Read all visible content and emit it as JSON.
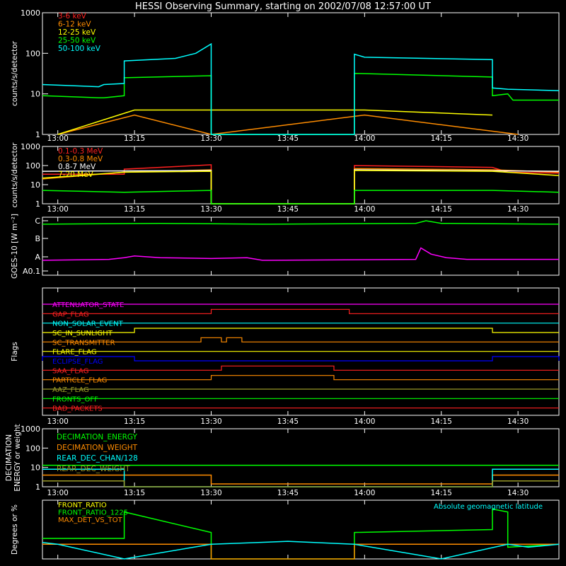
{
  "title": "HESSI Observing Summary, starting on 2002/07/08 12:57:00 UT",
  "time_ticks": [
    "13:00",
    "13:15",
    "13:30",
    "13:45",
    "14:00",
    "14:15",
    "14:30"
  ],
  "colors": {
    "bg": "#000000",
    "axis": "#ffffff",
    "red": "#ff2020",
    "orange": "#ff8c00",
    "yellow": "#ffff00",
    "green": "#00ff00",
    "cyan": "#00ffff",
    "magenta": "#ff00ff",
    "blue": "#0000ff",
    "olive": "#9a9a28"
  },
  "chart_data": [
    {
      "id": "lowE",
      "type": "line",
      "ylabel": "counts/s/detector",
      "yscale": "log",
      "ylim": [
        1,
        1000
      ],
      "yticks": [
        "1",
        "10",
        "100",
        "1000"
      ],
      "series": [
        {
          "name": "3-6 keV",
          "color": "#ff2020",
          "x": [],
          "y": []
        },
        {
          "name": "6-12 keV",
          "color": "#ff8c00",
          "x": [
            "13:00",
            "13:15",
            "13:30",
            "14:00",
            "14:30"
          ],
          "y": [
            1,
            3,
            1,
            3,
            1
          ]
        },
        {
          "name": "12-25 keV",
          "color": "#ffff00",
          "x": [
            "13:00",
            "13:15",
            "13:29",
            "14:00",
            "14:25"
          ],
          "y": [
            1,
            4,
            4,
            4,
            3
          ]
        },
        {
          "name": "25-50 keV",
          "color": "#00ff00",
          "x": [
            "12:57",
            "13:08",
            "13:09",
            "13:13",
            "13:13",
            "13:30",
            "13:30",
            "13:58",
            "13:58",
            "14:25",
            "14:25",
            "14:28",
            "14:29",
            "14:38"
          ],
          "y": [
            9,
            8,
            8,
            9,
            25,
            28,
            1,
            1,
            32,
            26,
            9,
            10,
            7,
            7
          ]
        },
        {
          "name": "50-100 keV",
          "color": "#00ffff",
          "x": [
            "12:57",
            "13:08",
            "13:09",
            "13:13",
            "13:13",
            "13:23",
            "13:27",
            "13:30",
            "13:30",
            "13:58",
            "13:58",
            "14:00",
            "14:25",
            "14:25",
            "14:28",
            "14:38"
          ],
          "y": [
            17,
            15,
            17,
            18,
            65,
            75,
            100,
            170,
            1,
            1,
            95,
            80,
            70,
            14,
            13,
            12
          ]
        }
      ]
    },
    {
      "id": "highE",
      "type": "line",
      "ylabel": "counts/s/detector",
      "yscale": "log",
      "ylim": [
        1,
        1000
      ],
      "yticks": [
        "1",
        "10",
        "100",
        "1000"
      ],
      "series": [
        {
          "name": "0.1-0.3 MeV",
          "color": "#ff2020",
          "x": [
            "12:57",
            "13:13",
            "13:13",
            "13:30",
            "13:30",
            "13:58",
            "13:58",
            "14:25",
            "14:28",
            "14:38"
          ],
          "y": [
            35,
            35,
            65,
            110,
            1,
            1,
            100,
            80,
            45,
            40
          ]
        },
        {
          "name": "0.3-0.8 MeV",
          "color": "#ff8c00",
          "x": [
            "12:57",
            "13:13",
            "13:30",
            "13:30",
            "13:58",
            "13:58",
            "14:25",
            "14:38"
          ],
          "y": [
            20,
            45,
            60,
            1,
            1,
            70,
            60,
            45
          ]
        },
        {
          "name": "0.8-7 MeV",
          "color": "#ffffff",
          "x": [
            "12:57",
            "13:30",
            "13:30",
            "13:58",
            "13:58",
            "14:38"
          ],
          "y": [
            50,
            55,
            1,
            1,
            60,
            50
          ]
        },
        {
          "name": "7-20 MeV",
          "color": "#ffff00",
          "x": [
            "12:57",
            "13:13",
            "13:30",
            "13:30",
            "13:58",
            "13:58",
            "14:25",
            "14:38"
          ],
          "y": [
            22,
            45,
            50,
            1,
            1,
            55,
            50,
            30
          ]
        },
        {
          "name": "",
          "color": "#00ff00",
          "x": [
            "12:57",
            "13:13",
            "13:30",
            "13:30",
            "13:58",
            "13:58",
            "14:25",
            "14:38"
          ],
          "y": [
            5,
            4,
            5,
            1,
            1,
            5,
            5,
            4
          ]
        }
      ]
    },
    {
      "id": "goes",
      "type": "line",
      "ylabel": "GOES-10 [W m⁻²]",
      "yticks": [
        "A0.1",
        "A",
        "B",
        "C"
      ],
      "series": [
        {
          "name": "GOES high",
          "color": "#00ff00",
          "x": [
            "12:57",
            "13:20",
            "13:40",
            "14:10",
            "14:12",
            "14:15",
            "14:38"
          ],
          "y": [
            2.9,
            2.95,
            2.9,
            2.95,
            3.1,
            2.95,
            2.9
          ]
        },
        {
          "name": "GOES low",
          "color": "#ff00ff",
          "x": [
            "12:57",
            "13:10",
            "13:13",
            "13:15",
            "13:20",
            "13:30",
            "13:37",
            "13:40",
            "14:10",
            "14:11",
            "14:13",
            "14:16",
            "14:20",
            "14:38"
          ],
          "y": [
            0.85,
            0.9,
            1.0,
            1.1,
            1.0,
            0.95,
            1.0,
            0.85,
            0.9,
            1.55,
            1.2,
            1.0,
            0.9,
            0.9
          ]
        }
      ]
    },
    {
      "id": "flags",
      "type": "line",
      "ylabel": "Flags",
      "flags": [
        {
          "name": "ATTENUATOR_STATE",
          "color": "#ff00ff",
          "segments": []
        },
        {
          "name": "GAP_FLAG",
          "color": "#ff2020",
          "segments": [
            [
              "13:30",
              "13:57"
            ]
          ]
        },
        {
          "name": "NON_SOLAR_EVENT",
          "color": "#00ffff",
          "segments": []
        },
        {
          "name": "SC_IN_SUNLIGHT",
          "color": "#ffff00",
          "segments": [
            [
              "13:15",
              "14:25"
            ]
          ]
        },
        {
          "name": "SC_TRANSMITTER",
          "color": "#ff8c00",
          "segments": [
            [
              "13:28",
              "13:32"
            ],
            [
              "13:33",
              "13:36"
            ]
          ]
        },
        {
          "name": "FLARE_FLAG",
          "color": "#ffff00",
          "segments": []
        },
        {
          "name": "ECLIPSE_FLAG",
          "color": "#0000ff",
          "segments": [
            [
              "12:57",
              "13:15"
            ],
            [
              "14:25",
              "14:38"
            ]
          ]
        },
        {
          "name": "SAA_FLAG",
          "color": "#ff2020",
          "segments": [
            [
              "13:32",
              "13:54"
            ]
          ]
        },
        {
          "name": "PARTICLE_FLAG",
          "color": "#ff8c00",
          "segments": [
            [
              "13:30",
              "13:54"
            ]
          ]
        },
        {
          "name": "AAZ_FLAG",
          "color": "#9a9a28",
          "segments": []
        },
        {
          "name": "FRONTS_OFF",
          "color": "#00ff00",
          "segments": []
        },
        {
          "name": "BAD_PACKETS",
          "color": "#ff2020",
          "segments": []
        }
      ]
    },
    {
      "id": "decim",
      "type": "line",
      "ylabel": "DECIMATION ENERGY or weight",
      "yscale": "log",
      "ylim": [
        1,
        1000
      ],
      "yticks": [
        "1",
        "10",
        "100",
        "1000"
      ],
      "series": [
        {
          "name": "DECIMATION_ENERGY",
          "color": "#00ff00",
          "x": [
            "12:57",
            "14:38"
          ],
          "y": [
            13,
            13
          ]
        },
        {
          "name": "DECIMATION_WEIGHT",
          "color": "#ff8c00",
          "x": [
            "12:57",
            "13:30",
            "13:30",
            "14:25",
            "14:25",
            "14:38"
          ],
          "y": [
            4,
            4,
            1.4,
            1.4,
            4,
            4
          ]
        },
        {
          "name": "REAR_DEC_CHAN/128",
          "color": "#00ffff",
          "x": [
            "12:57",
            "13:13",
            "13:13",
            "14:25",
            "14:25",
            "14:38"
          ],
          "y": [
            8,
            8,
            1,
            1,
            8,
            8
          ]
        },
        {
          "name": "REAR_DEC_WEIGHT",
          "color": "#9a9a28",
          "x": [
            "12:57",
            "13:13",
            "13:13",
            "14:25",
            "14:25",
            "14:38"
          ],
          "y": [
            2,
            2,
            1,
            1,
            2,
            2
          ]
        }
      ]
    },
    {
      "id": "ratio",
      "type": "line",
      "ylabel": "Degrees or %",
      "ylim": [
        0,
        100
      ],
      "annotation": "Absolute geomagnetic latitude",
      "series": [
        {
          "name": "FRONT_RATIO",
          "color": "#ffff00",
          "x": [],
          "y": []
        },
        {
          "name": "FRONT_RATIO_1225",
          "color": "#00ff00",
          "x": [
            "12:57",
            "13:13",
            "13:13",
            "13:30",
            "13:30",
            "13:58",
            "13:58",
            "14:25",
            "14:25",
            "14:28",
            "14:28",
            "14:38"
          ],
          "y": [
            35,
            35,
            80,
            45,
            0,
            0,
            45,
            50,
            85,
            80,
            20,
            25
          ]
        },
        {
          "name": "MAX_DET_VS_TOT",
          "color": "#ff8c00",
          "x": [
            "12:57",
            "13:30",
            "13:30",
            "13:58",
            "13:58",
            "14:38"
          ],
          "y": [
            25,
            25,
            0,
            0,
            25,
            25
          ]
        },
        {
          "name": "Absolute geomagnetic latitude",
          "color": "#00ffff",
          "x": [
            "12:57",
            "13:00",
            "13:13",
            "13:30",
            "13:45",
            "13:58",
            "14:15",
            "14:28",
            "14:32",
            "14:38"
          ],
          "y": [
            28,
            25,
            0,
            25,
            30,
            25,
            0,
            25,
            20,
            25
          ]
        }
      ]
    }
  ]
}
